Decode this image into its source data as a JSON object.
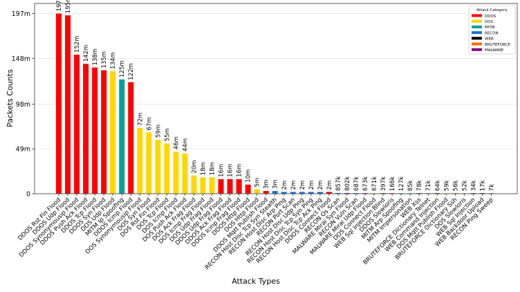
{
  "chart_data": {
    "type": "bar",
    "xlabel": "Attack Types",
    "ylabel": "Packets Counts",
    "ylim": [
      0,
      208000000
    ],
    "yticks": [
      0,
      49000000,
      98000000,
      148000000,
      197000000
    ],
    "ytick_labels": [
      "0",
      "49m",
      "98m",
      "148m",
      "197m"
    ],
    "grid": "horizontal",
    "legend": {
      "title": "Attack Category",
      "placement": "top-right",
      "entries": [
        {
          "name": "DDOS",
          "color": "#ff0000"
        },
        {
          "name": "DOS",
          "color": "#ffd700"
        },
        {
          "name": "MITM",
          "color": "#00a19b"
        },
        {
          "name": "RECON",
          "color": "#1a6fe0"
        },
        {
          "name": "WEB",
          "color": "#000000"
        },
        {
          "name": "BRUTEFORCE",
          "color": "#ff6a00"
        },
        {
          "name": "MALWARE",
          "color": "#800080"
        }
      ]
    },
    "categories": [
      "DDOS Rst Fin Flood",
      "DDOS Udp Flood",
      "DDOS Synonymousip Flood",
      "DDOS Push Ack Flood",
      "DDOS Tcp Flood",
      "DDOS Syn Flood",
      "DOS Udp Flood",
      "MITM Ip Spoofing",
      "DDOS Icmp Flood",
      "DOS Synonymousip Flood",
      "DOS Syn Flood",
      "DOS Rst Fin Flood",
      "DOS Tcp Flood",
      "DOS Icmp Flood",
      "DOS Push Ack Flood",
      "DOS Ack Frag Flood",
      "DOS Icmp Frag Flood",
      "DOS Udp Frag Flood",
      "DDOS Udp Frag Flood",
      "DDOS Ack Frag Flood",
      "DDOS Icmp Frag Flood",
      "DDOS Http Flood",
      "DOS Http Flood",
      "DDOS Mqtt Publish Flood",
      "RECON Host Disc Tcp Syn Stealth",
      "RECON Host Disc Arp Ping",
      "RECON Port Scan",
      "RECON Host Disc Udp Ping",
      "RECON Host Disc Tcp Syn Ping",
      "RECON Host Disc Tcp Ack Ping",
      "DDOS Connect Flood",
      "RECON Os Scan",
      "MALWARE Mirai Syn Flood",
      "RECON Vuln Scan",
      "MALWARE Mirai Udp Flood",
      "DOS Connect Flood",
      "WEB Sql Injection Blind",
      "DDOS Slowloris",
      "MITM Arp Spoofing",
      "MITM Impersonation",
      "WEB Xss",
      "BRUTEFORCE Dictionary Telnet",
      "WEB Command Injection",
      "DOS Mqtt Publish Flood",
      "BRUTEFORCE Dictionary Ssh",
      "DOS Slowloris",
      "WEB Sql Injection",
      "WEB Backdoor Upload",
      "RECON Ping Sweep"
    ],
    "values": [
      197000000,
      195000000,
      152000000,
      142000000,
      138000000,
      135000000,
      134000000,
      125000000,
      122000000,
      72000000,
      67000000,
      59000000,
      55000000,
      46000000,
      44000000,
      20000000,
      18000000,
      18000000,
      16000000,
      16000000,
      16000000,
      10000000,
      5000000,
      3000000,
      3000000,
      2000000,
      2000000,
      2000000,
      2000000,
      2000000,
      2000000,
      857000,
      802000,
      687000,
      673000,
      671000,
      397000,
      166000,
      127000,
      85000,
      78000,
      71000,
      64000,
      59000,
      56000,
      52000,
      34000,
      17000,
      7000
    ],
    "value_labels": [
      "197m",
      "195m",
      "152m",
      "142m",
      "138m",
      "135m",
      "134m",
      "125m",
      "122m",
      "72m",
      "67m",
      "59m",
      "55m",
      "46m",
      "44m",
      "20m",
      "18m",
      "18m",
      "16m",
      "16m",
      "16m",
      "10m",
      "5m",
      "3m",
      "3m",
      "2m",
      "2m",
      "2m",
      "2m",
      "2m",
      "2m",
      "857k",
      "802k",
      "687k",
      "673k",
      "671k",
      "397k",
      "166k",
      "127k",
      "85k",
      "78k",
      "71k",
      "64k",
      "59k",
      "56k",
      "52k",
      "34k",
      "17k",
      "7k"
    ]
  }
}
